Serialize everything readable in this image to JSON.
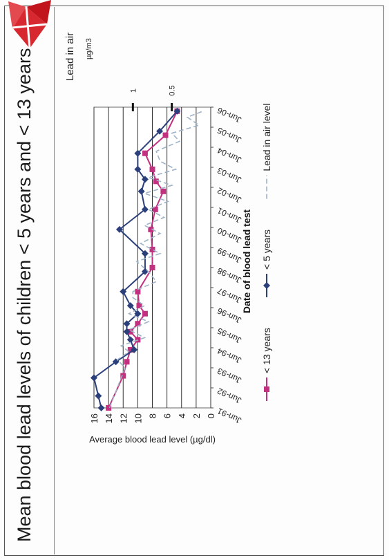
{
  "page": {
    "title": "Mean blood lead levels of children < 5 years and < 13 years"
  },
  "colors": {
    "under13": "#c2307f",
    "under5": "#2b3f7a",
    "air": "#9fb2c6",
    "logo": "#d7282f"
  },
  "chart_data": {
    "type": "line",
    "title": "Mean blood lead levels of children < 5 years and < 13 years",
    "xlabel": "Date of blood lead test",
    "ylabel": "Average blood lead level (µg/dl)",
    "ylim": [
      0,
      16
    ],
    "yticks": [
      "0",
      "2",
      "4",
      "6",
      "8",
      "10",
      "12",
      "14",
      "16"
    ],
    "xlim": [
      1991.5,
      2006.5
    ],
    "xticks": [
      {
        "v": 1991.5,
        "label": "Jun-91"
      },
      {
        "v": 1992.5,
        "label": "Jun-92"
      },
      {
        "v": 1993.5,
        "label": "Jun-93"
      },
      {
        "v": 1994.5,
        "label": "Jun-94"
      },
      {
        "v": 1995.5,
        "label": "Jun-95"
      },
      {
        "v": 1996.5,
        "label": "Jun-96"
      },
      {
        "v": 1997.5,
        "label": "Jun-97"
      },
      {
        "v": 1998.5,
        "label": "Jun-98"
      },
      {
        "v": 1999.5,
        "label": "Jun-99"
      },
      {
        "v": 2000.5,
        "label": "Jun-00"
      },
      {
        "v": 2001.5,
        "label": "Jun-01"
      },
      {
        "v": 2002.5,
        "label": "Jun-02"
      },
      {
        "v": 2003.5,
        "label": "Jun-03"
      },
      {
        "v": 2004.5,
        "label": "Jun-04"
      },
      {
        "v": 2005.5,
        "label": "Jun-05"
      },
      {
        "v": 2006.5,
        "label": "Jun-06"
      }
    ],
    "y2label": "Lead in air",
    "y2unit": "µg/m3",
    "y2lim": [
      0,
      1.5
    ],
    "y2ticks": [
      {
        "v": 1,
        "label": "1"
      },
      {
        "v": 0.5,
        "label": "0.5"
      }
    ],
    "grid": true,
    "legend_position": "bottom",
    "series": [
      {
        "name": "< 13 years",
        "axis": "left",
        "marker": "square",
        "x": [
          1991.5,
          1993.1,
          1993.8,
          1994.4,
          1994.9,
          1995.3,
          1995.7,
          1996.2,
          1996.6,
          1997.3,
          1998.5,
          1999.4,
          2000.4,
          2001.4,
          2002.3,
          2002.8,
          2003.4,
          2004.2,
          2005.1,
          2006.3
        ],
        "y": [
          14.0,
          12.0,
          11.5,
          11.0,
          10.0,
          11.0,
          10.0,
          9.0,
          9.8,
          10.0,
          8.0,
          8.0,
          8.2,
          7.6,
          6.5,
          7.5,
          8.0,
          9.0,
          6.2,
          4.6
        ]
      },
      {
        "name": "< 5 years",
        "axis": "left",
        "marker": "diamond",
        "x": [
          1991.5,
          1992.1,
          1993.0,
          1993.8,
          1994.4,
          1994.9,
          1995.3,
          1995.7,
          1996.2,
          1996.6,
          1997.3,
          1998.3,
          1999.2,
          2000.4,
          2001.4,
          2002.3,
          2002.9,
          2003.4,
          2004.2,
          2005.3,
          2006.3
        ],
        "y": [
          15.0,
          15.4,
          16.0,
          13.0,
          10.5,
          11.0,
          11.5,
          11.5,
          10.0,
          11.0,
          12.0,
          9.0,
          9.0,
          12.5,
          9.0,
          9.5,
          9.0,
          10.0,
          10.0,
          7.0,
          4.6
        ]
      },
      {
        "name": "Lead in air level",
        "axis": "right",
        "marker": "none",
        "x": [
          1991.5,
          1992.5,
          1993.0,
          1993.5,
          1993.9,
          1994.3,
          1994.6,
          1995.0,
          1995.4,
          1995.8,
          1996.2,
          1996.6,
          1997.0,
          1997.3,
          1997.8,
          1998.3,
          1998.8,
          1999.2,
          1999.7,
          2000.2,
          2000.6,
          2001.0,
          2001.4,
          2001.8,
          2002.2,
          2002.6,
          2003.0,
          2003.4,
          2003.8,
          2004.3,
          2004.8,
          2005.2,
          2005.6,
          2006.0,
          2006.3
        ],
        "y": [
          1.3,
          1.2,
          1.15,
          1.1,
          1.2,
          1.05,
          1.15,
          0.85,
          1.05,
          0.8,
          1.05,
          0.85,
          1.0,
          1.0,
          0.7,
          0.8,
          0.95,
          0.65,
          0.9,
          0.65,
          0.85,
          0.6,
          0.8,
          0.55,
          0.85,
          0.5,
          0.8,
          0.45,
          0.65,
          0.7,
          0.4,
          0.5,
          0.15,
          0.3,
          0.1
        ]
      }
    ]
  }
}
